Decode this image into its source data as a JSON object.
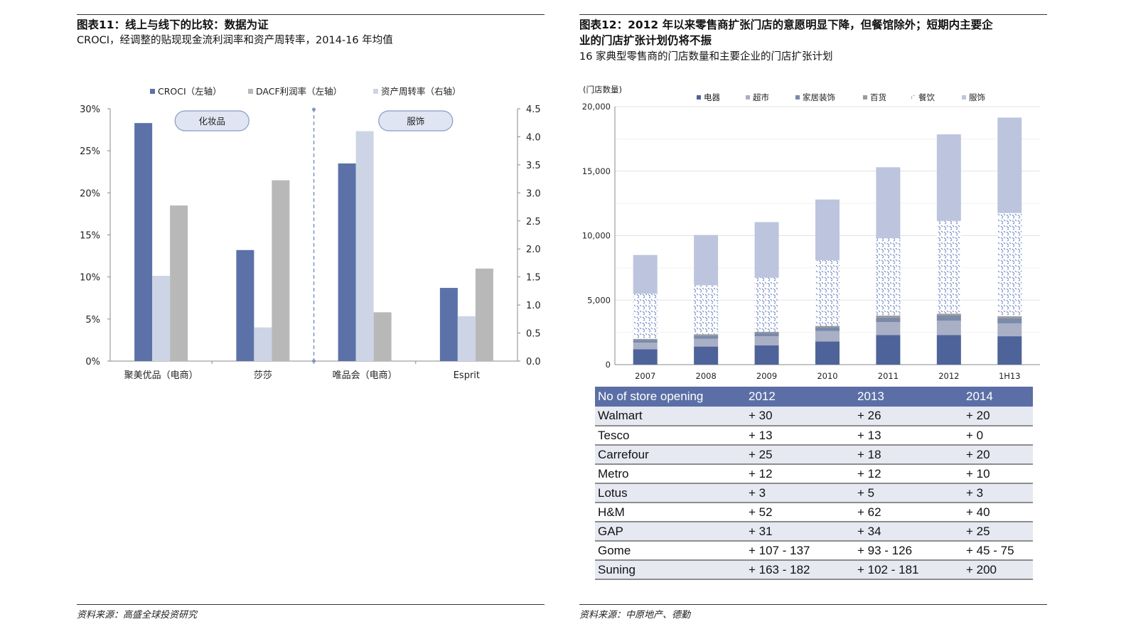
{
  "left": {
    "title": "图表11：线上与线下的比较：数据为证",
    "subtitle": "CROCI，经调整的贴现现金流利润率和资产周转率，2014-16 年均值",
    "source": "资料来源：高盛全球投资研究"
  },
  "right": {
    "title_line1": "图表12：2012 年以来零售商扩张门店的意愿明显下降，但餐馆除外；短期内主要企",
    "title_line2": "业的门店扩张计划仍将不振",
    "subtitle": "16 家典型零售商的门店数量和主要企业的门店扩张计划",
    "source": "资料来源：中原地产、德勤"
  },
  "chart_data": [
    {
      "type": "bar",
      "categories": [
        "聚美优品（电商）",
        "莎莎",
        "唯品会（电商）",
        "Esprit"
      ],
      "series": [
        {
          "name": "CROCI（左轴）",
          "axis": "left",
          "color": "#5b71a8",
          "values": [
            28.3,
            13.2,
            23.5,
            8.7
          ]
        },
        {
          "name": "资产周转率（右轴）",
          "axis": "right",
          "color": "#ccd4e6",
          "values": [
            1.52,
            0.6,
            4.1,
            0.8
          ]
        },
        {
          "name": "DACF利润率（左轴）",
          "axis": "left",
          "color": "#b8b8b8",
          "values": [
            18.5,
            21.5,
            5.8,
            11.0
          ]
        }
      ],
      "legend_order": [
        0,
        2,
        1
      ],
      "ylim": [
        0,
        30
      ],
      "yticks": [
        "0%",
        "5%",
        "10%",
        "15%",
        "20%",
        "25%",
        "30%"
      ],
      "y2lim": [
        0,
        4.5
      ],
      "y2ticks": [
        "0.0",
        "0.5",
        "1.0",
        "1.5",
        "2.0",
        "2.5",
        "3.0",
        "3.5",
        "4.0",
        "4.5"
      ],
      "group_labels": [
        "化妆品",
        "服饰"
      ],
      "legend_position": "top"
    },
    {
      "type": "bar",
      "stacked": true,
      "ylabel": "(门店数量)",
      "categories": [
        "2007",
        "2008",
        "2009",
        "2010",
        "2011",
        "2012",
        "1H13"
      ],
      "series": [
        {
          "name": "电器",
          "color": "#4e6399",
          "values": [
            1200,
            1400,
            1500,
            1800,
            2300,
            2300,
            2200
          ]
        },
        {
          "name": "超市",
          "color": "#a9b0c6",
          "values": [
            500,
            600,
            700,
            800,
            1000,
            1100,
            1000
          ]
        },
        {
          "name": "家居装饰",
          "color": "#7a8aa9",
          "values": [
            200,
            250,
            250,
            300,
            350,
            400,
            400
          ]
        },
        {
          "name": "百货",
          "color": "#9a9a9a",
          "values": [
            100,
            100,
            100,
            100,
            150,
            150,
            150
          ]
        },
        {
          "name": "餐饮",
          "color": "#7d90c4",
          "pattern": true,
          "values": [
            3500,
            3800,
            4200,
            5100,
            6000,
            7200,
            8000
          ]
        },
        {
          "name": "服饰",
          "color": "#bcc5dd",
          "values": [
            3000,
            3900,
            4300,
            4700,
            5500,
            6700,
            7400
          ]
        }
      ],
      "ylim": [
        0,
        20000
      ],
      "yticks": [
        "0",
        "5,000",
        "10,000",
        "15,000",
        "20,000"
      ],
      "legend_position": "top"
    }
  ],
  "table": {
    "headers": [
      "No of store opening",
      "2012",
      "2013",
      "2014"
    ],
    "rows": [
      [
        "Walmart",
        "+ 30",
        "+ 26",
        "+ 20"
      ],
      [
        "Tesco",
        "+ 13",
        "+ 13",
        "+ 0"
      ],
      [
        "Carrefour",
        "+ 25",
        "+ 18",
        "+ 20"
      ],
      [
        "Metro",
        "+ 12",
        "+ 12",
        "+ 10"
      ],
      [
        "Lotus",
        "+ 3",
        "+ 5",
        "+ 3"
      ],
      [
        "H&M",
        "+ 52",
        "+ 62",
        "+ 40"
      ],
      [
        "GAP",
        "+ 31",
        "+ 34",
        "+ 25"
      ],
      [
        "Gome",
        "+ 107 - 137",
        "+ 93 - 126",
        "+ 45 - 75"
      ],
      [
        "Suning",
        "+ 163 - 182",
        "+ 102 - 181",
        "+ 200"
      ]
    ]
  }
}
